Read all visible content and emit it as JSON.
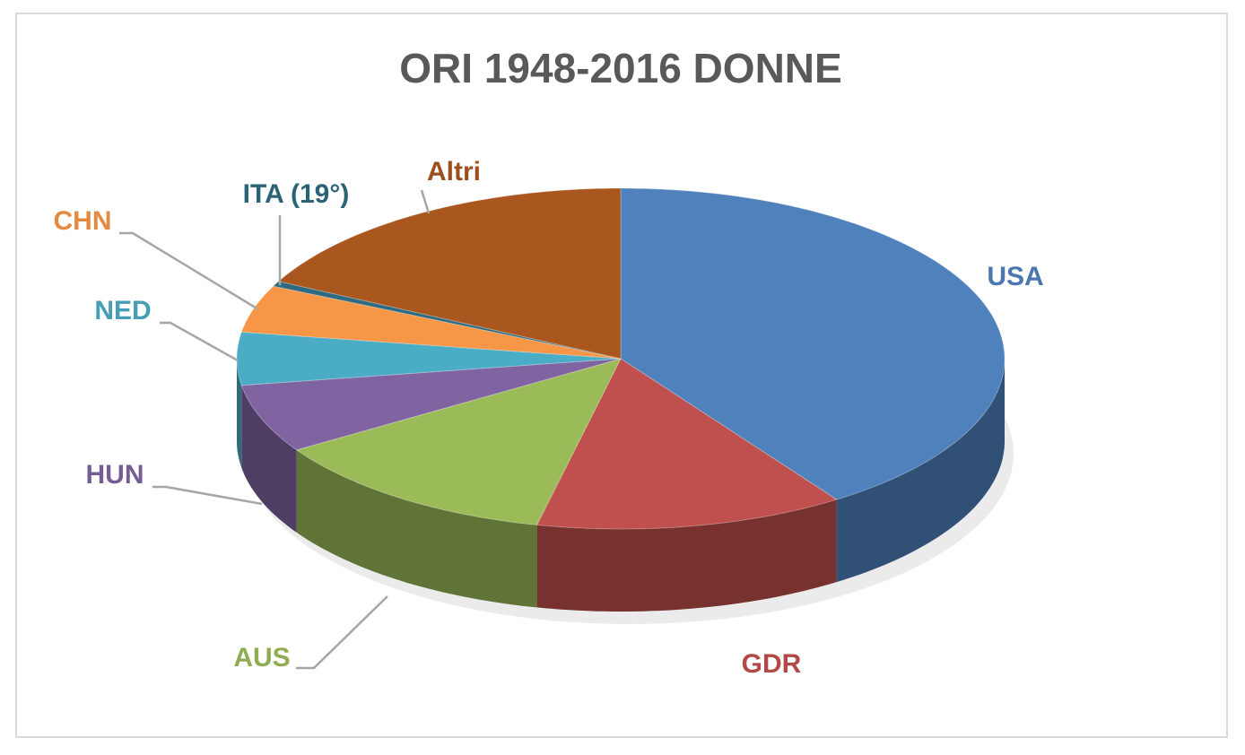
{
  "chart_data": {
    "type": "pie",
    "title": "ORI 1948-2016 DONNE",
    "categories": [
      "USA",
      "GDR",
      "AUS",
      "HUN",
      "NED",
      "CHN",
      "ITA (19°)",
      "Altri"
    ],
    "values": [
      40.5,
      13,
      12.5,
      6.5,
      5,
      4.5,
      0.5,
      17.5
    ],
    "colors": [
      "#4f81bd",
      "#c0504d",
      "#9bbb59",
      "#8064a2",
      "#4bacc6",
      "#f79646",
      "#2e6b80",
      "#a9561f"
    ]
  }
}
